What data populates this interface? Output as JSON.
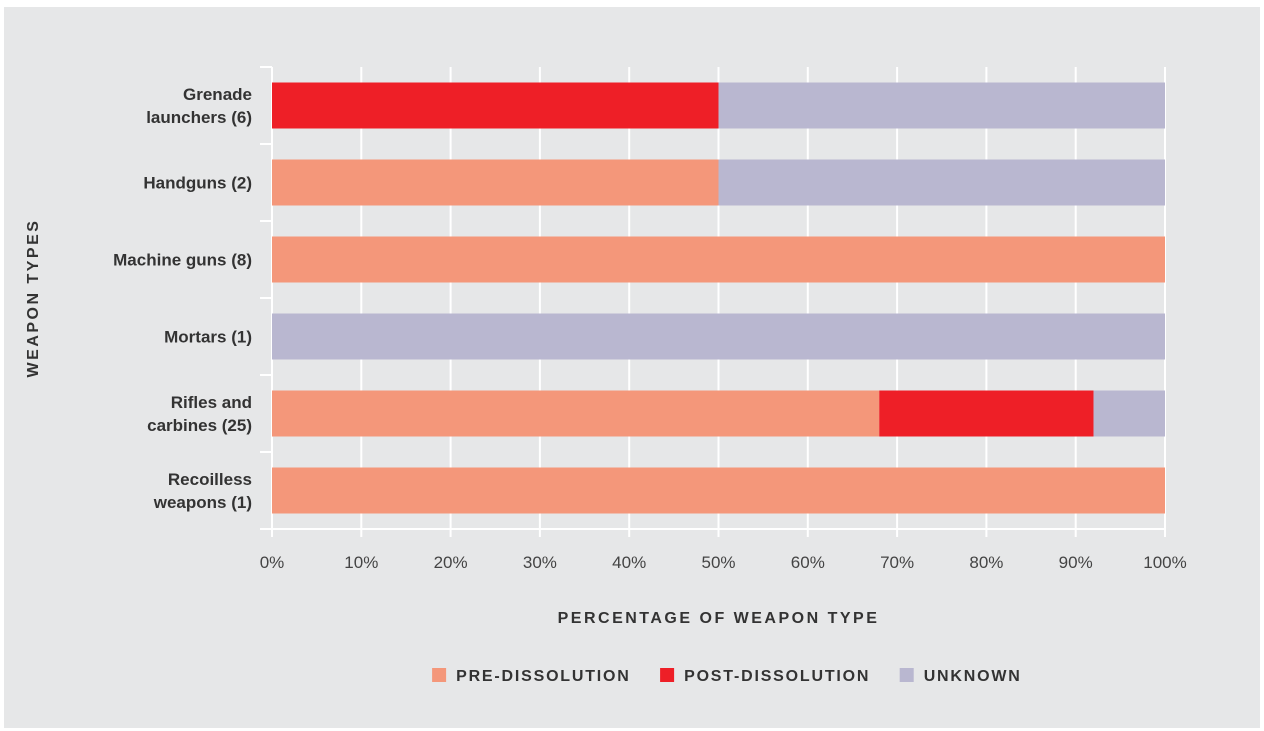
{
  "chart_data": {
    "type": "bar",
    "orientation": "horizontal",
    "stacked": true,
    "title": "",
    "xlabel": "PERCENTAGE OF WEAPON TYPE",
    "ylabel": "WEAPON TYPES",
    "xlim": [
      0,
      100
    ],
    "x_ticks": [
      "0%",
      "10%",
      "20%",
      "30%",
      "40%",
      "50%",
      "60%",
      "70%",
      "80%",
      "90%",
      "100%"
    ],
    "categories": [
      [
        "Grenade",
        "launchers (6)"
      ],
      [
        "Handguns (2)"
      ],
      [
        "Machine guns (8)"
      ],
      [
        "Mortars (1)"
      ],
      [
        "Rifles and",
        "carbines (25)"
      ],
      [
        "Recoilless",
        "weapons (1)"
      ]
    ],
    "series": [
      {
        "name": "PRE-DISSOLUTION",
        "color": "#f4977a",
        "values": [
          0,
          50,
          100,
          0,
          68,
          100
        ]
      },
      {
        "name": "POST-DISSOLUTION",
        "color": "#ee1f27",
        "values": [
          50,
          0,
          0,
          0,
          24,
          0
        ]
      },
      {
        "name": "UNKNOWN",
        "color": "#b9b7d0",
        "values": [
          50,
          50,
          0,
          100,
          8,
          0
        ]
      }
    ],
    "grid": true,
    "legend_position": "bottom"
  }
}
